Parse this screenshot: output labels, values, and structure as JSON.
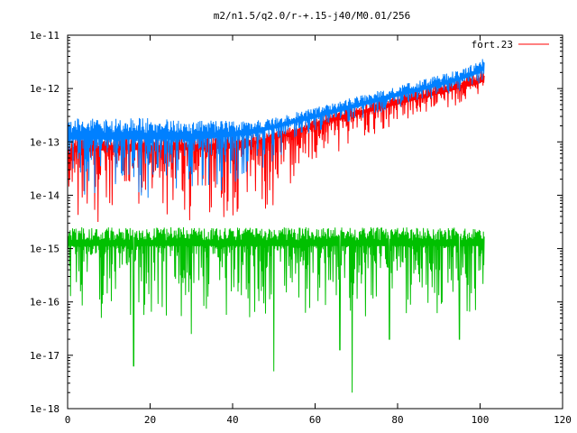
{
  "chart_data": {
    "type": "line",
    "title": "m2/n1.5/q2.0/r-+.15-j40/M0.01/256",
    "xlabel": "",
    "ylabel": "",
    "xlim": [
      0,
      120
    ],
    "ylim": [
      1e-18,
      1e-11
    ],
    "yscale": "log",
    "x_ticks": [
      0,
      20,
      40,
      60,
      80,
      100,
      120
    ],
    "x_tick_labels": [
      "0",
      "20",
      "40",
      "60",
      "80",
      "100",
      "120"
    ],
    "y_ticks": [
      1e-18,
      1e-17,
      1e-16,
      1e-15,
      1e-14,
      1e-13,
      1e-12,
      1e-11
    ],
    "y_tick_labels": [
      "1e-18",
      "1e-17",
      "1e-16",
      "1e-15",
      "1e-14",
      "1e-13",
      "1e-12",
      "1e-11"
    ],
    "grid": false,
    "legend_position": "top-right",
    "series": [
      {
        "name": "fort.23",
        "color": "#ff0000",
        "in_legend": true,
        "envelope_x": [
          0,
          10,
          20,
          30,
          40,
          45,
          50,
          55,
          60,
          65,
          70,
          75,
          80,
          85,
          90,
          95,
          100,
          101
        ],
        "envelope_log10_top": [
          -12.95,
          -12.9,
          -12.9,
          -12.88,
          -12.88,
          -12.85,
          -12.8,
          -12.7,
          -12.55,
          -12.4,
          -12.3,
          -12.2,
          -12.1,
          -12.0,
          -11.9,
          -11.8,
          -11.68,
          -11.62
        ],
        "envelope_log10_median": [
          -13.2,
          -13.15,
          -13.15,
          -13.15,
          -13.12,
          -13.05,
          -12.95,
          -12.85,
          -12.72,
          -12.6,
          -12.5,
          -12.4,
          -12.3,
          -12.2,
          -12.1,
          -12.0,
          -11.9,
          -11.85
        ],
        "envelope_log10_dip": [
          -14.5,
          -14.5,
          -14.4,
          -14.5,
          -14.4,
          -14.1,
          -14.6,
          -13.8,
          -13.4,
          -13.3,
          -13.0,
          -12.95,
          -12.7,
          -12.6,
          -12.4,
          -12.3,
          -12.1,
          -12.0
        ]
      },
      {
        "name": "",
        "color": "#0080ff",
        "in_legend": false,
        "envelope_x": [
          0,
          10,
          20,
          30,
          40,
          45,
          50,
          55,
          60,
          65,
          70,
          75,
          80,
          85,
          90,
          95,
          100,
          101
        ],
        "envelope_log10_top": [
          -12.55,
          -12.55,
          -12.55,
          -12.6,
          -12.6,
          -12.6,
          -12.55,
          -12.45,
          -12.35,
          -12.25,
          -12.15,
          -12.05,
          -11.95,
          -11.85,
          -11.75,
          -11.65,
          -11.48,
          -11.42
        ],
        "envelope_log10_median": [
          -12.95,
          -12.95,
          -12.95,
          -12.95,
          -12.9,
          -12.85,
          -12.75,
          -12.65,
          -12.55,
          -12.45,
          -12.35,
          -12.25,
          -12.15,
          -12.05,
          -11.95,
          -11.85,
          -11.7,
          -11.62
        ],
        "envelope_log10_dip": [
          -14.1,
          -14.1,
          -14.2,
          -14.3,
          -13.9,
          -13.6,
          -13.4,
          -13.1,
          -12.9,
          -12.7,
          -12.6,
          -12.5,
          -12.35,
          -12.25,
          -12.15,
          -12.05,
          -11.9,
          -11.8
        ]
      },
      {
        "name": "",
        "color": "#00c000",
        "in_legend": false,
        "envelope_x": [
          0,
          20,
          40,
          60,
          80,
          100,
          101
        ],
        "envelope_log10_top": [
          -14.6,
          -14.6,
          -14.6,
          -14.6,
          -14.6,
          -14.6,
          -14.6
        ],
        "envelope_log10_median": [
          -14.95,
          -14.95,
          -14.95,
          -14.95,
          -14.95,
          -14.95,
          -14.95
        ],
        "envelope_log10_dip": [
          -16.3,
          -16.3,
          -16.3,
          -16.3,
          -16.3,
          -16.3,
          -16.3
        ],
        "deep_dips": [
          [
            16,
            -17.2
          ],
          [
            30,
            -16.6
          ],
          [
            50,
            -17.3
          ],
          [
            66,
            -16.9
          ],
          [
            69,
            -17.7
          ],
          [
            78,
            -16.7
          ],
          [
            95,
            -16.7
          ]
        ]
      }
    ]
  }
}
